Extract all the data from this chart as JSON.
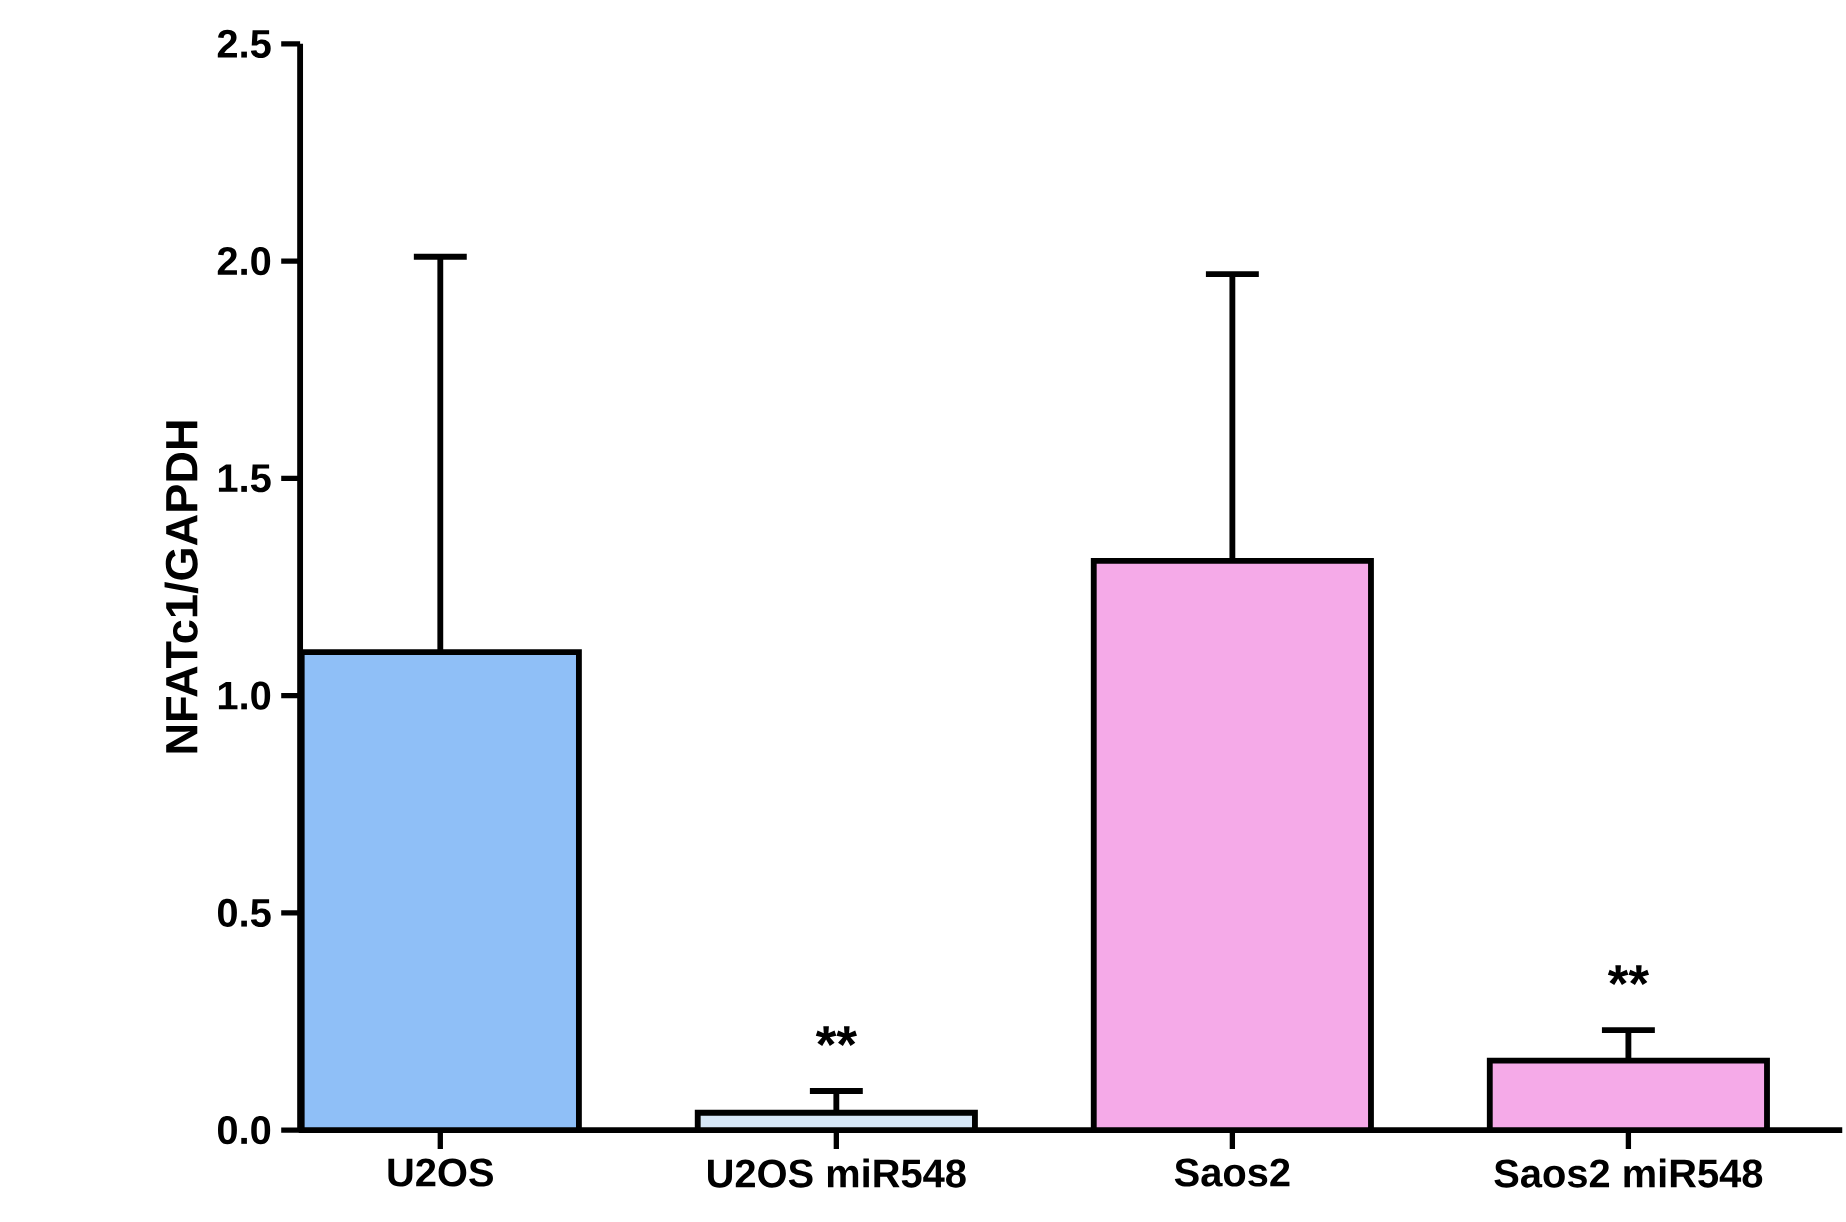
{
  "chart_data": {
    "type": "bar",
    "ylabel": "NFATc1/GAPDH",
    "categories": [
      "U2OS",
      "U2OS miR548",
      "Saos2",
      "Saos2 miR548"
    ],
    "values": [
      1.1,
      0.04,
      1.31,
      0.16
    ],
    "errors": [
      [
        1.1,
        2.01
      ],
      [
        0.04,
        0.09
      ],
      [
        1.31,
        1.97
      ],
      [
        0.16,
        0.23
      ]
    ],
    "colors": [
      "#8fbff7",
      "#d6e6f7",
      "#f5aae8",
      "#f5aae8"
    ],
    "ylim": [
      0,
      2.5
    ],
    "yticks": [
      {
        "value": 0,
        "label": "0.0"
      },
      {
        "value": 0.5,
        "label": "0.5"
      },
      {
        "value": 1,
        "label": "1.0"
      },
      {
        "value": 1.5,
        "label": "1.5"
      },
      {
        "value": 2,
        "label": "2.0"
      },
      {
        "value": 2.5,
        "label": "2.5"
      }
    ],
    "annotations": [
      "**",
      "**"
    ]
  }
}
